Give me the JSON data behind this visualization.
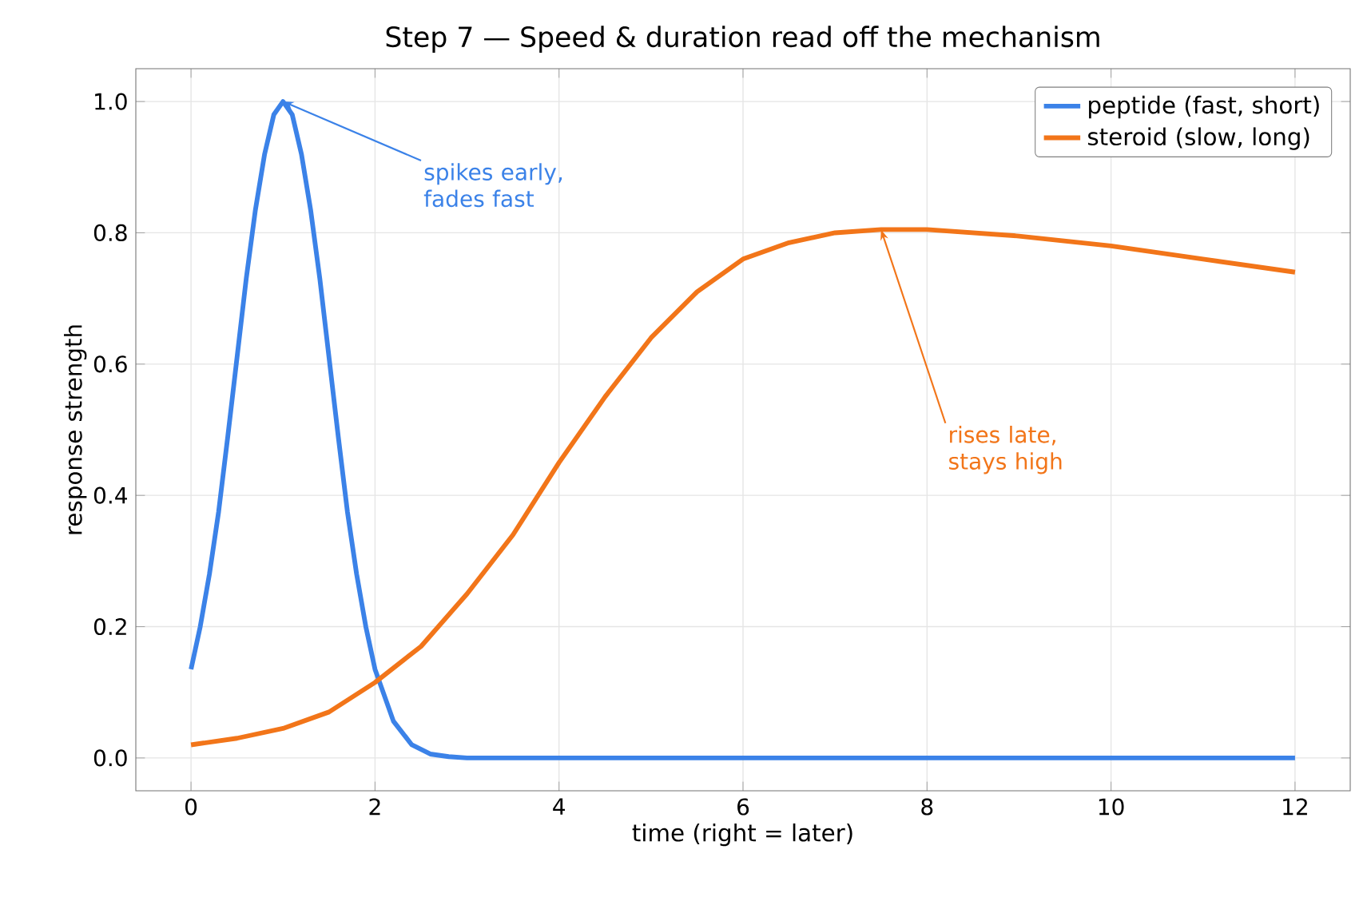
{
  "chart_data": {
    "type": "line",
    "title": "Step 7  —  Speed & duration read off the mechanism",
    "xlabel": "time  (right = later)",
    "ylabel": "response strength",
    "xlim": [
      -0.6,
      12.6
    ],
    "ylim": [
      -0.05,
      1.05
    ],
    "xticks": [
      0,
      2,
      4,
      6,
      8,
      10,
      12
    ],
    "yticks": [
      {
        "value": 0,
        "label": "0.0"
      },
      {
        "value": 0.2,
        "label": "0.2"
      },
      {
        "value": 0.4,
        "label": "0.4"
      },
      {
        "value": 0.6,
        "label": "0.6"
      },
      {
        "value": 0.8,
        "label": "0.8"
      },
      {
        "value": 1,
        "label": "1.0"
      }
    ],
    "grid": true,
    "legend": "top right",
    "line_style": "solid",
    "marker": "none",
    "series": [
      {
        "name": "peptide (fast, short)",
        "color": "#3b82e8",
        "x": [
          0,
          0.1,
          0.2,
          0.3,
          0.4,
          0.5,
          0.6,
          0.7,
          0.8,
          0.9,
          1.0,
          1.1,
          1.2,
          1.3,
          1.4,
          1.5,
          1.6,
          1.7,
          1.8,
          1.9,
          2.0,
          2.2,
          2.4,
          2.6,
          2.8,
          3,
          4,
          6,
          8,
          10,
          12
        ],
        "values": [
          0.135,
          0.2,
          0.28,
          0.375,
          0.49,
          0.61,
          0.73,
          0.835,
          0.92,
          0.98,
          1.0,
          0.98,
          0.92,
          0.835,
          0.73,
          0.61,
          0.49,
          0.375,
          0.28,
          0.2,
          0.135,
          0.056,
          0.02,
          0.006,
          0.002,
          0,
          0,
          0,
          0,
          0,
          0
        ]
      },
      {
        "name": "steroid (slow, long)",
        "color": "#f27519",
        "x": [
          0,
          0.5,
          1,
          1.5,
          2,
          2.5,
          3,
          3.5,
          4,
          4.5,
          5,
          5.5,
          6,
          6.5,
          7,
          7.5,
          8,
          9,
          10,
          11,
          12
        ],
        "values": [
          0.02,
          0.03,
          0.045,
          0.07,
          0.115,
          0.17,
          0.25,
          0.34,
          0.45,
          0.55,
          0.64,
          0.71,
          0.76,
          0.785,
          0.8,
          0.805,
          0.805,
          0.795,
          0.78,
          0.76,
          0.74
        ]
      }
    ],
    "annotations": [
      {
        "text": "spikes early, fades fast",
        "x": 1,
        "y": 1.0
      },
      {
        "text": "rises late, stays high",
        "x": 7.5,
        "y": 0.805
      }
    ]
  }
}
